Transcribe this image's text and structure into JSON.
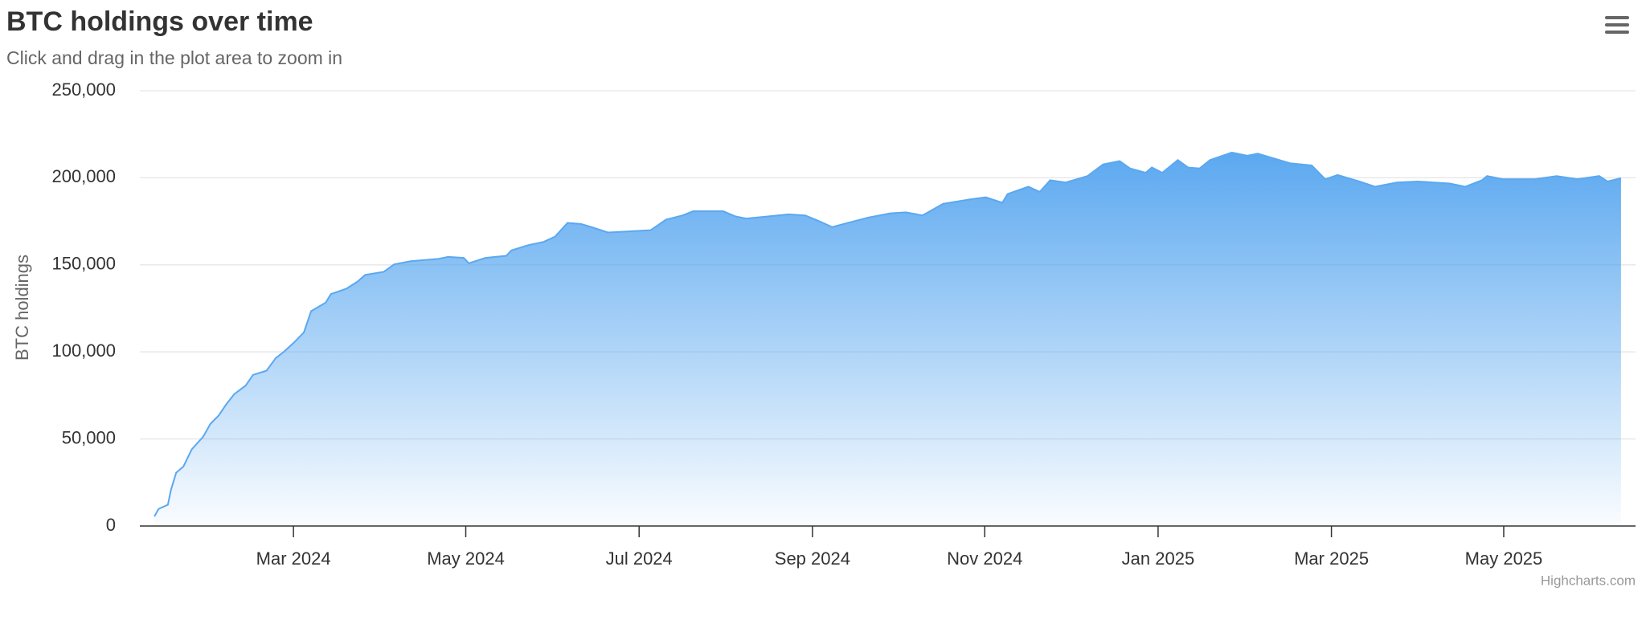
{
  "chart_data": {
    "type": "area",
    "title": "BTC holdings over time",
    "subtitle": "Click and drag in the plot area to zoom in",
    "y_label": "BTC holdings",
    "credits": "Highcharts.com",
    "color": "#5ba8f0",
    "grid": true,
    "xlim": [
      2024.019,
      2025.46
    ],
    "xticks": [
      {
        "value": 2024.167,
        "label": "Mar 2024"
      },
      {
        "value": 2024.333,
        "label": "May 2024"
      },
      {
        "value": 2024.5,
        "label": "Jul 2024"
      },
      {
        "value": 2024.667,
        "label": "Sep 2024"
      },
      {
        "value": 2024.833,
        "label": "Nov 2024"
      },
      {
        "value": 2025,
        "label": "Jan 2025"
      },
      {
        "value": 2025.167,
        "label": "Mar 2025"
      },
      {
        "value": 2025.333,
        "label": "May 2025"
      }
    ],
    "ylim": [
      0,
      250000
    ],
    "yticks": [
      0,
      {
        "value": 50000,
        "label": "50,000"
      },
      {
        "value": 100000,
        "label": "100,000"
      },
      {
        "value": 150000,
        "label": "150,000"
      },
      {
        "value": 200000,
        "label": "200,000"
      },
      {
        "value": 250000,
        "label": "250,000"
      }
    ],
    "x": [
      2024.033,
      2024.037,
      2024.046,
      2024.049,
      2024.054,
      2024.061,
      2024.069,
      2024.08,
      2024.087,
      2024.095,
      2024.102,
      2024.11,
      2024.121,
      2024.128,
      2024.141,
      2024.15,
      2024.158,
      2024.167,
      2024.177,
      2024.184,
      2024.198,
      2024.203,
      2024.218,
      2024.229,
      2024.236,
      2024.254,
      2024.264,
      2024.28,
      2024.306,
      2024.316,
      2024.331,
      2024.336,
      2024.352,
      2024.372,
      2024.377,
      2024.393,
      2024.408,
      2024.419,
      2024.431,
      2024.444,
      2024.454,
      2024.47,
      2024.49,
      2024.511,
      2024.526,
      2024.542,
      2024.552,
      2024.581,
      2024.593,
      2024.603,
      2024.624,
      2024.644,
      2024.66,
      2024.675,
      2024.686,
      2024.701,
      2024.721,
      2024.742,
      2024.757,
      2024.773,
      2024.793,
      2024.819,
      2024.834,
      2024.85,
      2024.855,
      2024.875,
      2024.886,
      2024.896,
      2024.911,
      2024.932,
      2024.947,
      2024.963,
      2024.973,
      2024.988,
      2024.994,
      2025.004,
      2025.019,
      2025.029,
      2025.04,
      2025.05,
      2025.071,
      2025.086,
      2025.096,
      2025.127,
      2025.148,
      2025.161,
      2025.173,
      2025.194,
      2025.209,
      2025.23,
      2025.25,
      2025.281,
      2025.296,
      2025.312,
      2025.317,
      2025.332,
      2025.363,
      2025.384,
      2025.404,
      2025.425,
      2025.433,
      2025.446
    ],
    "values": [
      5500,
      9800,
      12200,
      20800,
      30600,
      34200,
      44000,
      51300,
      58700,
      63500,
      69700,
      75800,
      80700,
      86800,
      89200,
      96500,
      100200,
      105100,
      111200,
      123400,
      128300,
      133200,
      136300,
      140500,
      144200,
      146000,
      150300,
      152100,
      153400,
      154600,
      154000,
      150900,
      154000,
      155200,
      158300,
      161300,
      163200,
      166200,
      174100,
      173500,
      171700,
      168600,
      169200,
      169900,
      176000,
      178400,
      180800,
      180800,
      177800,
      176600,
      177800,
      179000,
      178400,
      174700,
      171700,
      174100,
      177200,
      179600,
      180200,
      178400,
      185100,
      187600,
      188800,
      185700,
      190700,
      194900,
      191900,
      198600,
      197300,
      201000,
      207700,
      209600,
      205400,
      202900,
      206000,
      202900,
      210200,
      205900,
      205400,
      210200,
      214500,
      212700,
      213900,
      208400,
      207100,
      199200,
      201600,
      197900,
      194900,
      197300,
      197900,
      196700,
      194900,
      198600,
      201000,
      199200,
      199200,
      201000,
      199200,
      201000,
      197900,
      199800
    ]
  }
}
